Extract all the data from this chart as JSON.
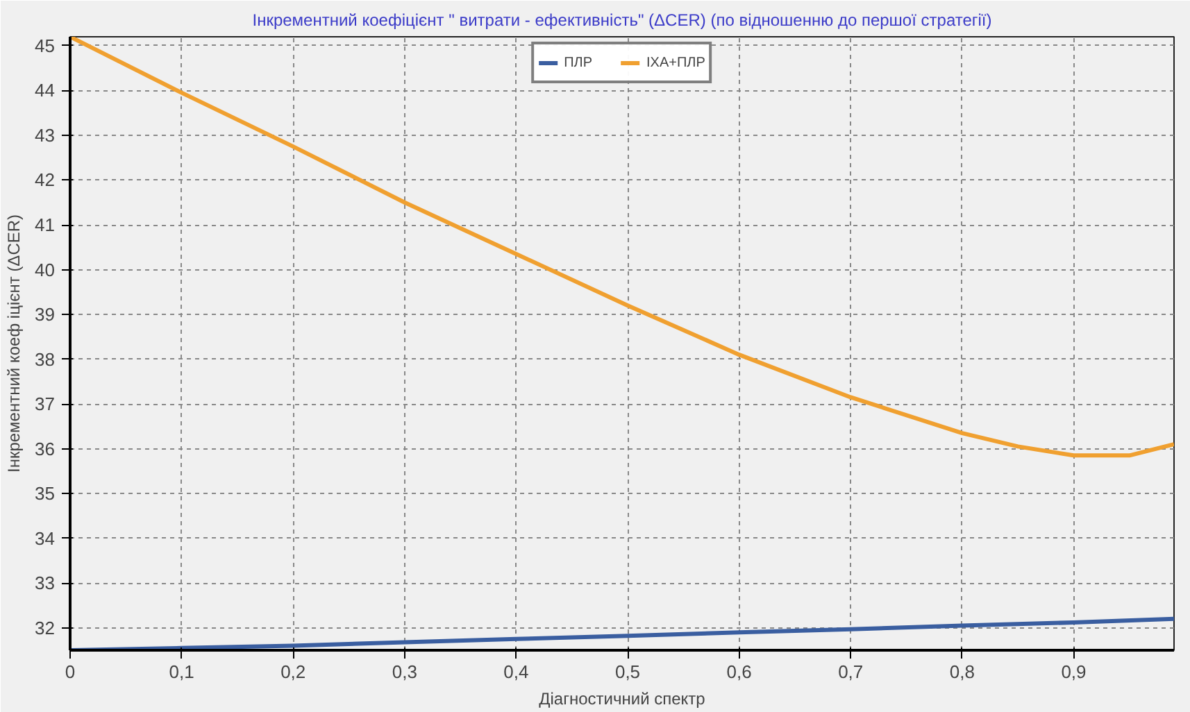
{
  "chart_data": {
    "type": "line",
    "title": "Інкрементний коефіцієнт \" витрати - ефективність\" (ΔCER) (по відношенню до першої стратегії)",
    "xlabel": "Діагностичний спектр",
    "ylabel": "Інкрементний коеф іцієнт (ΔCER)",
    "xlim": [
      0,
      0.99
    ],
    "ylim": [
      31.5,
      45.2
    ],
    "xticks": [
      0,
      {
        "value": 0.1,
        "label": "0,1"
      },
      {
        "value": 0.2,
        "label": "0,2"
      },
      {
        "value": 0.3,
        "label": "0,3"
      },
      {
        "value": 0.4,
        "label": "0,4"
      },
      {
        "value": 0.5,
        "label": "0,5"
      },
      {
        "value": 0.6,
        "label": "0,6"
      },
      {
        "value": 0.7,
        "label": "0,7"
      },
      {
        "value": 0.8,
        "label": "0,8"
      },
      {
        "value": 0.9,
        "label": "0,9"
      }
    ],
    "yticks": [
      32,
      33,
      34,
      35,
      36,
      37,
      38,
      39,
      40,
      41,
      42,
      43,
      44,
      45
    ],
    "grid": true,
    "legend": "top",
    "marker": "none",
    "series": [
      {
        "name": "ПЛР",
        "color": "#3a5ea0",
        "x": [
          0,
          0.1,
          0.2,
          0.3,
          0.4,
          0.5,
          0.6,
          0.7,
          0.8,
          0.9,
          0.99
        ],
        "values": [
          31.5,
          31.55,
          31.6,
          31.68,
          31.75,
          31.82,
          31.9,
          31.97,
          32.05,
          32.12,
          32.2
        ]
      },
      {
        "name": "ІХА+ПЛР",
        "color": "#f0a030",
        "x": [
          0,
          0.1,
          0.2,
          0.3,
          0.4,
          0.5,
          0.6,
          0.7,
          0.8,
          0.85,
          0.9,
          0.95,
          0.99
        ],
        "values": [
          45.2,
          43.95,
          42.75,
          41.5,
          40.35,
          39.2,
          38.1,
          37.15,
          36.35,
          36.05,
          35.85,
          35.85,
          36.1
        ]
      }
    ]
  }
}
